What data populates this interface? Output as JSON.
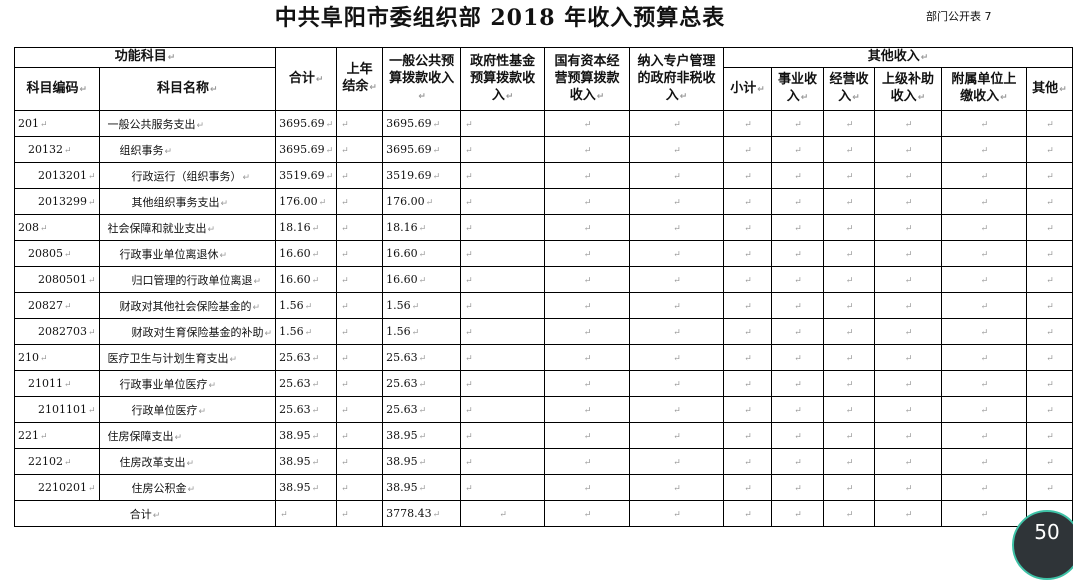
{
  "title": "中共阜阳市委组织部 2018 年收入预算总表",
  "table_tag": "部门公开表 7",
  "headers": {
    "func": "功能科目",
    "code": "科目编码",
    "name": "科目名称",
    "total": "合计",
    "carry": "上年结余",
    "general": "一般公共预算拨款收入",
    "fund": "政府性基金预算拨款收入",
    "state": "国有资本经营预算拨款收入",
    "special": "纳入专户管理的政府非税收入",
    "other": "其他收入",
    "other_sub": [
      "小计",
      "事业收入",
      "经营收入",
      "上级补助收入",
      "附属单位上缴收入",
      "其他"
    ]
  },
  "rows": [
    {
      "code": "201",
      "name": "一般公共服务支出",
      "level": 0,
      "total": "3695.69",
      "general": "3695.69"
    },
    {
      "code": "20132",
      "name": "组织事务",
      "level": 1,
      "total": "3695.69",
      "general": "3695.69"
    },
    {
      "code": "2013201",
      "name": "行政运行（组织事务）",
      "level": 2,
      "total": "3519.69",
      "general": "3519.69"
    },
    {
      "code": "2013299",
      "name": "其他组织事务支出",
      "level": 2,
      "total": "176.00",
      "general": "176.00"
    },
    {
      "code": "208",
      "name": "社会保障和就业支出",
      "level": 0,
      "total": "18.16",
      "general": "18.16"
    },
    {
      "code": "20805",
      "name": "行政事业单位离退休",
      "level": 1,
      "total": "16.60",
      "general": "16.60"
    },
    {
      "code": "2080501",
      "name": "归口管理的行政单位离退",
      "level": 2,
      "total": "16.60",
      "general": "16.60"
    },
    {
      "code": "20827",
      "name": "财政对其他社会保险基金的",
      "level": 1,
      "total": "1.56",
      "general": "1.56"
    },
    {
      "code": "2082703",
      "name": "财政对生育保险基金的补助",
      "level": 2,
      "total": "1.56",
      "general": "1.56"
    },
    {
      "code": "210",
      "name": "医疗卫生与计划生育支出",
      "level": 0,
      "total": "25.63",
      "general": "25.63"
    },
    {
      "code": "21011",
      "name": "行政事业单位医疗",
      "level": 1,
      "total": "25.63",
      "general": "25.63"
    },
    {
      "code": "2101101",
      "name": "行政单位医疗",
      "level": 2,
      "total": "25.63",
      "general": "25.63"
    },
    {
      "code": "221",
      "name": "住房保障支出",
      "level": 0,
      "total": "38.95",
      "general": "38.95"
    },
    {
      "code": "22102",
      "name": "住房改革支出",
      "level": 1,
      "total": "38.95",
      "general": "38.95"
    },
    {
      "code": "2210201",
      "name": "住房公积金",
      "level": 2,
      "total": "38.95",
      "general": "38.95"
    }
  ],
  "footer": {
    "label": "合计",
    "general": "3778.43"
  },
  "overlay_badge": "50"
}
